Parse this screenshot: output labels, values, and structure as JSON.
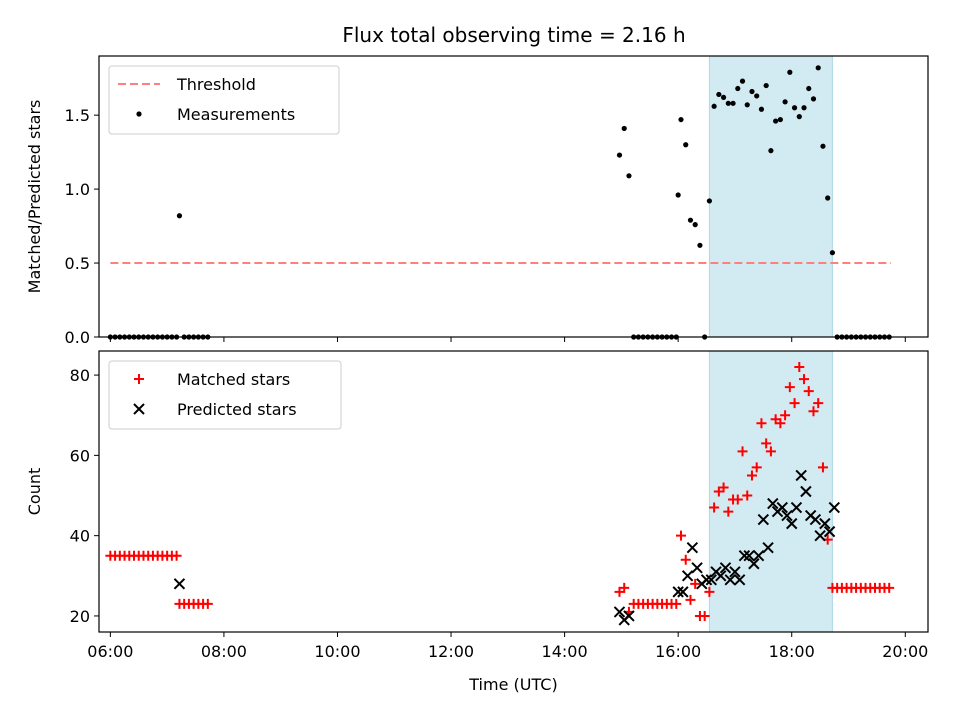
{
  "title": "Flux total observing time = 2.16 h",
  "colors": {
    "threshold": "#ff7f7f",
    "measurement": "#000000",
    "matched": "#ff0000",
    "predicted": "#000000",
    "shade": "#add8e6"
  },
  "chart_data": [
    {
      "type": "scatter",
      "ylabel": "Matched/Predicted stars",
      "xlabel": "",
      "xlim": [
        "05:48",
        "20:24"
      ],
      "ylim": [
        0,
        1.9
      ],
      "grid": false,
      "legend_position": "top-left",
      "x_ticks": [
        "06:00",
        "08:00",
        "10:00",
        "12:00",
        "14:00",
        "16:00",
        "18:00",
        "20:00"
      ],
      "y_ticks": [
        "0.0",
        "0.5",
        "1.0",
        "1.5"
      ],
      "y_tick_values": [
        0,
        0.5,
        1.0,
        1.5
      ],
      "shaded_span": [
        "16:33",
        "18:43"
      ],
      "legend": [
        "Threshold",
        "Measurements"
      ],
      "threshold": {
        "name": "Threshold",
        "value": 0.5,
        "x_range": [
          "06:00",
          "19:45"
        ]
      },
      "series": [
        {
          "name": "Measurements",
          "points": [
            [
              "06:00",
              0
            ],
            [
              "06:05",
              0
            ],
            [
              "06:10",
              0
            ],
            [
              "06:15",
              0
            ],
            [
              "06:20",
              0
            ],
            [
              "06:25",
              0
            ],
            [
              "06:30",
              0
            ],
            [
              "06:35",
              0
            ],
            [
              "06:40",
              0
            ],
            [
              "06:45",
              0
            ],
            [
              "06:50",
              0
            ],
            [
              "06:55",
              0
            ],
            [
              "07:00",
              0
            ],
            [
              "07:05",
              0
            ],
            [
              "07:10",
              0
            ],
            [
              "07:13",
              0.82
            ],
            [
              "07:18",
              0
            ],
            [
              "07:23",
              0
            ],
            [
              "07:28",
              0
            ],
            [
              "07:33",
              0
            ],
            [
              "07:38",
              0
            ],
            [
              "07:43",
              0
            ],
            [
              "14:58",
              1.23
            ],
            [
              "15:03",
              1.41
            ],
            [
              "15:08",
              1.09
            ],
            [
              "15:13",
              0
            ],
            [
              "15:18",
              0
            ],
            [
              "15:23",
              0
            ],
            [
              "15:28",
              0
            ],
            [
              "15:33",
              0
            ],
            [
              "15:38",
              0
            ],
            [
              "15:43",
              0
            ],
            [
              "15:48",
              0
            ],
            [
              "15:53",
              0
            ],
            [
              "15:58",
              0
            ],
            [
              "16:00",
              0.96
            ],
            [
              "16:03",
              1.47
            ],
            [
              "16:08",
              1.3
            ],
            [
              "16:13",
              0.79
            ],
            [
              "16:18",
              0.76
            ],
            [
              "16:23",
              0.62
            ],
            [
              "16:28",
              0
            ],
            [
              "16:33",
              0.92
            ],
            [
              "16:38",
              1.56
            ],
            [
              "16:43",
              1.64
            ],
            [
              "16:48",
              1.62
            ],
            [
              "16:53",
              1.58
            ],
            [
              "16:58",
              1.58
            ],
            [
              "17:03",
              1.68
            ],
            [
              "17:08",
              1.73
            ],
            [
              "17:13",
              1.57
            ],
            [
              "17:18",
              1.66
            ],
            [
              "17:23",
              1.63
            ],
            [
              "17:28",
              1.54
            ],
            [
              "17:33",
              1.7
            ],
            [
              "17:38",
              1.26
            ],
            [
              "17:43",
              1.46
            ],
            [
              "17:48",
              1.47
            ],
            [
              "17:53",
              1.59
            ],
            [
              "17:58",
              1.79
            ],
            [
              "18:03",
              1.55
            ],
            [
              "18:08",
              1.49
            ],
            [
              "18:13",
              1.55
            ],
            [
              "18:18",
              1.68
            ],
            [
              "18:23",
              1.61
            ],
            [
              "18:28",
              1.82
            ],
            [
              "18:33",
              1.29
            ],
            [
              "18:38",
              0.94
            ],
            [
              "18:43",
              0.57
            ],
            [
              "18:48",
              0
            ],
            [
              "18:53",
              0
            ],
            [
              "18:58",
              0
            ],
            [
              "19:03",
              0
            ],
            [
              "19:08",
              0
            ],
            [
              "19:13",
              0
            ],
            [
              "19:18",
              0
            ],
            [
              "19:23",
              0
            ],
            [
              "19:28",
              0
            ],
            [
              "19:33",
              0
            ],
            [
              "19:38",
              0
            ],
            [
              "19:43",
              0
            ]
          ]
        }
      ]
    },
    {
      "type": "scatter",
      "ylabel": "Count",
      "xlabel": "Time (UTC)",
      "xlim": [
        "05:48",
        "20:24"
      ],
      "ylim": [
        16,
        86
      ],
      "grid": false,
      "legend_position": "top-left",
      "x_ticks": [
        "06:00",
        "08:00",
        "10:00",
        "12:00",
        "14:00",
        "16:00",
        "18:00",
        "20:00"
      ],
      "y_ticks": [
        "20",
        "40",
        "60",
        "80"
      ],
      "y_tick_values": [
        20,
        40,
        60,
        80
      ],
      "shaded_span": [
        "16:33",
        "18:43"
      ],
      "legend": [
        "Matched stars",
        "Predicted stars"
      ],
      "series": [
        {
          "name": "Matched stars",
          "marker": "+",
          "points": [
            [
              "06:00",
              35
            ],
            [
              "06:05",
              35
            ],
            [
              "06:10",
              35
            ],
            [
              "06:15",
              35
            ],
            [
              "06:20",
              35
            ],
            [
              "06:25",
              35
            ],
            [
              "06:30",
              35
            ],
            [
              "06:35",
              35
            ],
            [
              "06:40",
              35
            ],
            [
              "06:45",
              35
            ],
            [
              "06:50",
              35
            ],
            [
              "06:55",
              35
            ],
            [
              "07:00",
              35
            ],
            [
              "07:05",
              35
            ],
            [
              "07:10",
              35
            ],
            [
              "07:13",
              23
            ],
            [
              "07:18",
              23
            ],
            [
              "07:23",
              23
            ],
            [
              "07:28",
              23
            ],
            [
              "07:33",
              23
            ],
            [
              "07:38",
              23
            ],
            [
              "07:43",
              23
            ],
            [
              "14:58",
              26
            ],
            [
              "15:03",
              27
            ],
            [
              "15:08",
              21
            ],
            [
              "15:13",
              23
            ],
            [
              "15:18",
              23
            ],
            [
              "15:23",
              23
            ],
            [
              "15:28",
              23
            ],
            [
              "15:33",
              23
            ],
            [
              "15:38",
              23
            ],
            [
              "15:43",
              23
            ],
            [
              "15:48",
              23
            ],
            [
              "15:53",
              23
            ],
            [
              "15:58",
              23
            ],
            [
              "16:03",
              40
            ],
            [
              "16:08",
              34
            ],
            [
              "16:13",
              24
            ],
            [
              "16:18",
              28
            ],
            [
              "16:23",
              20
            ],
            [
              "16:28",
              20
            ],
            [
              "16:33",
              26
            ],
            [
              "16:38",
              47
            ],
            [
              "16:43",
              51
            ],
            [
              "16:48",
              52
            ],
            [
              "16:53",
              46
            ],
            [
              "16:58",
              49
            ],
            [
              "17:03",
              49
            ],
            [
              "17:08",
              61
            ],
            [
              "17:13",
              50
            ],
            [
              "17:18",
              55
            ],
            [
              "17:23",
              57
            ],
            [
              "17:28",
              68
            ],
            [
              "17:33",
              63
            ],
            [
              "17:38",
              61
            ],
            [
              "17:43",
              69
            ],
            [
              "17:48",
              68
            ],
            [
              "17:53",
              70
            ],
            [
              "17:58",
              77
            ],
            [
              "18:03",
              73
            ],
            [
              "18:08",
              82
            ],
            [
              "18:13",
              79
            ],
            [
              "18:18",
              76
            ],
            [
              "18:23",
              71
            ],
            [
              "18:28",
              73
            ],
            [
              "18:33",
              57
            ],
            [
              "18:38",
              39
            ],
            [
              "18:43",
              27
            ],
            [
              "18:48",
              27
            ],
            [
              "18:53",
              27
            ],
            [
              "18:58",
              27
            ],
            [
              "19:03",
              27
            ],
            [
              "19:08",
              27
            ],
            [
              "19:13",
              27
            ],
            [
              "19:18",
              27
            ],
            [
              "19:23",
              27
            ],
            [
              "19:28",
              27
            ],
            [
              "19:33",
              27
            ],
            [
              "19:38",
              27
            ],
            [
              "19:43",
              27
            ]
          ]
        },
        {
          "name": "Predicted stars",
          "marker": "x",
          "points": [
            [
              "07:13",
              28
            ],
            [
              "14:58",
              21
            ],
            [
              "15:03",
              19
            ],
            [
              "15:08",
              20
            ],
            [
              "16:00",
              26
            ],
            [
              "16:05",
              26
            ],
            [
              "16:10",
              30
            ],
            [
              "16:15",
              37
            ],
            [
              "16:20",
              32
            ],
            [
              "16:25",
              28
            ],
            [
              "16:30",
              29
            ],
            [
              "16:35",
              29
            ],
            [
              "16:40",
              31
            ],
            [
              "16:45",
              30
            ],
            [
              "16:50",
              32
            ],
            [
              "16:55",
              29
            ],
            [
              "17:00",
              31
            ],
            [
              "17:05",
              29
            ],
            [
              "17:10",
              35
            ],
            [
              "17:15",
              35
            ],
            [
              "17:20",
              33
            ],
            [
              "17:25",
              35
            ],
            [
              "17:30",
              44
            ],
            [
              "17:35",
              37
            ],
            [
              "17:40",
              48
            ],
            [
              "17:45",
              46
            ],
            [
              "17:50",
              47
            ],
            [
              "17:55",
              45
            ],
            [
              "18:00",
              43
            ],
            [
              "18:05",
              47
            ],
            [
              "18:10",
              55
            ],
            [
              "18:15",
              51
            ],
            [
              "18:20",
              45
            ],
            [
              "18:25",
              44
            ],
            [
              "18:30",
              40
            ],
            [
              "18:35",
              43
            ],
            [
              "18:40",
              41
            ],
            [
              "18:45",
              47
            ]
          ]
        }
      ]
    }
  ]
}
